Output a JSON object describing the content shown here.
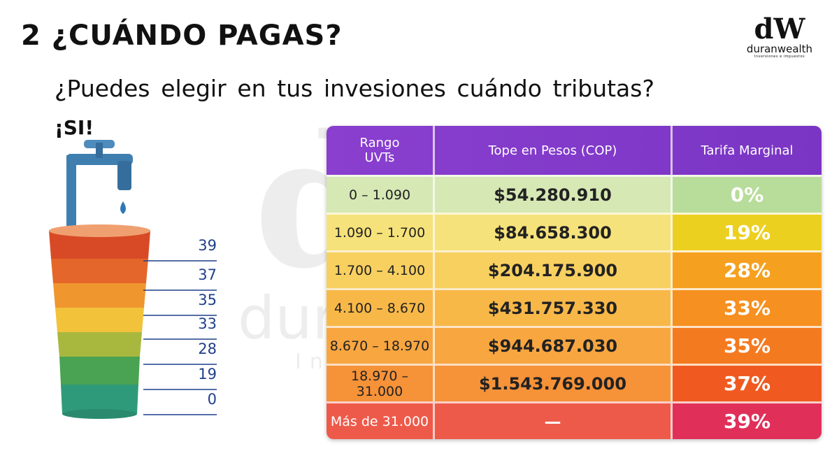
{
  "title": "2 ¿CUÁNDO PAGAS?",
  "question": "¿Puedes elegir en tus invesiones cuándo tributas?",
  "answer": "¡SI!",
  "logo": {
    "mark": "dW",
    "name": "duranwealth",
    "slogan": "Inversiones e impuestos"
  },
  "glass_levels": [
    "39",
    "37",
    "35",
    "33",
    "28",
    "19",
    "0"
  ],
  "table": {
    "headers": [
      "Rango UVTs",
      "Tope en Pesos (COP)",
      "Tarifa Marginal"
    ],
    "rows": [
      [
        "0 – 1.090",
        "$54.280.910",
        "0%"
      ],
      [
        "1.090 – 1.700",
        "$84.658.300",
        "19%"
      ],
      [
        "1.700 – 4.100",
        "$204.175.900",
        "28%"
      ],
      [
        "4.100 – 8.670",
        "$431.757.330",
        "33%"
      ],
      [
        "8.670 – 18.970",
        "$944.687.030",
        "35%"
      ],
      [
        "18.970 – 31.000",
        "$1.543.769.000",
        "37%"
      ],
      [
        "Más de 31.000",
        "—",
        "39%"
      ]
    ]
  }
}
